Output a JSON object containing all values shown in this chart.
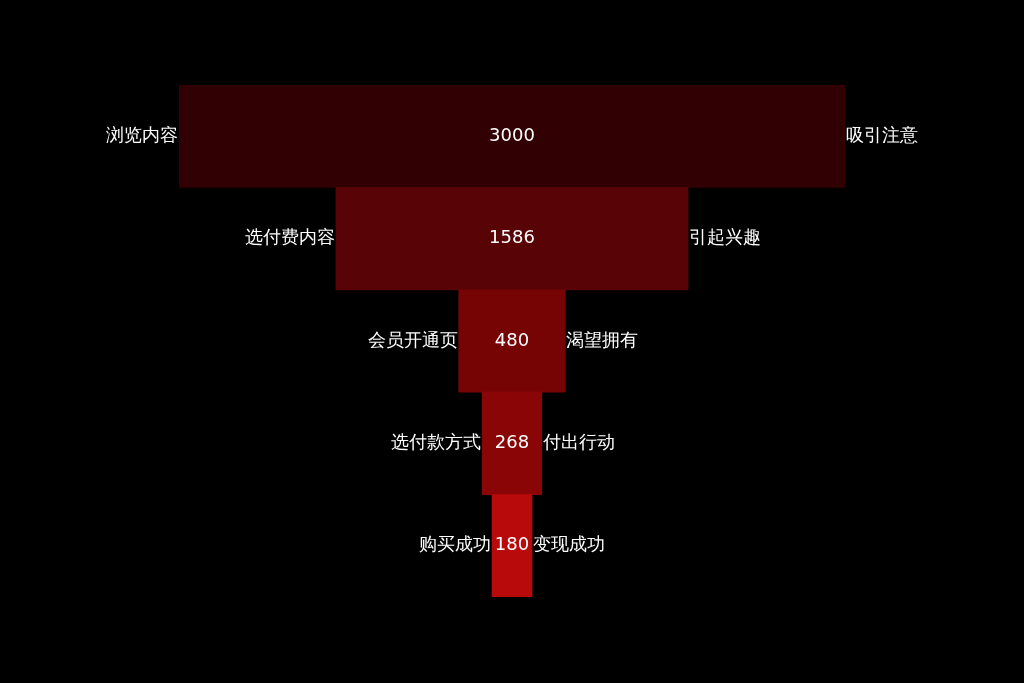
{
  "chart_data": {
    "type": "other",
    "categories": [
      "浏览内容",
      "选付费内容",
      "会员开通页",
      "选付款方式",
      "购买成功"
    ],
    "y2_categories": [
      "吸引注意",
      "引起兴趣",
      "渴望拥有",
      "付出行动",
      "变现成功"
    ],
    "values": [
      3000,
      1586,
      480,
      268,
      180
    ],
    "colors": [
      "#300003",
      "#580306",
      "#770405",
      "#8a0606",
      "#b80a0a"
    ],
    "data_labels": true
  }
}
